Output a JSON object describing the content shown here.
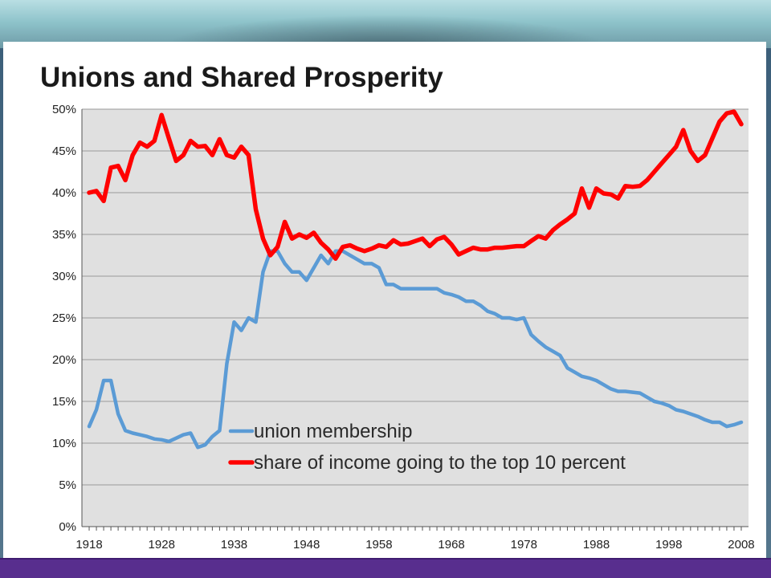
{
  "chart_data": {
    "type": "line",
    "title": "Unions and Shared Prosperity",
    "xlabel": "",
    "ylabel": "",
    "xlim": [
      1917,
      2009
    ],
    "ylim": [
      0,
      50
    ],
    "x_ticks": [
      1918,
      1928,
      1938,
      1948,
      1958,
      1968,
      1978,
      1988,
      1998,
      2008
    ],
    "x_tick_labels": [
      "1918",
      "1928",
      "1938",
      "1948",
      "1958",
      "1968",
      "1978",
      "1988",
      "1998",
      "2008"
    ],
    "y_ticks": [
      0,
      5,
      10,
      15,
      20,
      25,
      30,
      35,
      40,
      45,
      50
    ],
    "y_tick_labels": [
      "0%",
      "5%",
      "10%",
      "15%",
      "20%",
      "25%",
      "30%",
      "35%",
      "40%",
      "45%",
      "50%"
    ],
    "grid": "horizontal",
    "background": "#e0e0e0",
    "legend_position": "bottom-center, inside plot",
    "series": [
      {
        "name": "union membership",
        "color": "#5b9bd5",
        "x": [
          1918,
          1919,
          1920,
          1921,
          1922,
          1923,
          1924,
          1925,
          1926,
          1927,
          1928,
          1929,
          1930,
          1931,
          1932,
          1933,
          1934,
          1935,
          1936,
          1937,
          1938,
          1939,
          1940,
          1941,
          1942,
          1943,
          1944,
          1945,
          1946,
          1947,
          1948,
          1949,
          1950,
          1951,
          1952,
          1953,
          1954,
          1955,
          1956,
          1957,
          1958,
          1959,
          1960,
          1961,
          1962,
          1963,
          1964,
          1965,
          1966,
          1967,
          1968,
          1969,
          1970,
          1971,
          1972,
          1973,
          1974,
          1975,
          1976,
          1977,
          1978,
          1979,
          1980,
          1981,
          1982,
          1983,
          1984,
          1985,
          1986,
          1987,
          1988,
          1989,
          1990,
          1991,
          1992,
          1993,
          1994,
          1995,
          1996,
          1997,
          1998,
          1999,
          2000,
          2001,
          2002,
          2003,
          2004,
          2005,
          2006,
          2007,
          2008
        ],
        "values": [
          12.0,
          14.0,
          17.5,
          17.5,
          13.5,
          11.5,
          11.2,
          11.0,
          10.8,
          10.5,
          10.4,
          10.2,
          10.6,
          11.0,
          11.2,
          9.5,
          9.8,
          10.8,
          11.5,
          19.5,
          24.5,
          23.5,
          25.0,
          24.5,
          30.5,
          33.0,
          33.0,
          31.5,
          30.5,
          30.5,
          29.5,
          31.0,
          32.5,
          31.5,
          33.0,
          33.0,
          32.5,
          32.0,
          31.5,
          31.5,
          31.0,
          29.0,
          29.0,
          28.5,
          28.5,
          28.5,
          28.5,
          28.5,
          28.5,
          28.0,
          27.8,
          27.5,
          27.0,
          27.0,
          26.5,
          25.8,
          25.5,
          25.0,
          25.0,
          24.8,
          25.0,
          23.0,
          22.2,
          21.5,
          21.0,
          20.5,
          19.0,
          18.5,
          18.0,
          17.8,
          17.5,
          17.0,
          16.5,
          16.2,
          16.2,
          16.1,
          16.0,
          15.5,
          15.0,
          14.8,
          14.5,
          14.0,
          13.8,
          13.5,
          13.2,
          12.8,
          12.5,
          12.5,
          12.0,
          12.2,
          12.5
        ]
      },
      {
        "name": "share of income going to the top 10 percent",
        "color": "#ff0000",
        "x": [
          1918,
          1919,
          1920,
          1921,
          1922,
          1923,
          1924,
          1925,
          1926,
          1927,
          1928,
          1929,
          1930,
          1931,
          1932,
          1933,
          1934,
          1935,
          1936,
          1937,
          1938,
          1939,
          1940,
          1941,
          1942,
          1943,
          1944,
          1945,
          1946,
          1947,
          1948,
          1949,
          1950,
          1951,
          1952,
          1953,
          1954,
          1955,
          1956,
          1957,
          1958,
          1959,
          1960,
          1961,
          1962,
          1963,
          1964,
          1965,
          1966,
          1967,
          1968,
          1969,
          1970,
          1971,
          1972,
          1973,
          1974,
          1975,
          1976,
          1977,
          1978,
          1979,
          1980,
          1981,
          1982,
          1983,
          1984,
          1985,
          1986,
          1987,
          1988,
          1989,
          1990,
          1991,
          1992,
          1993,
          1994,
          1995,
          1996,
          1997,
          1998,
          1999,
          2000,
          2001,
          2002,
          2003,
          2004,
          2005,
          2006,
          2007,
          2008
        ],
        "values": [
          40.0,
          40.2,
          39.0,
          43.0,
          43.2,
          41.5,
          44.5,
          46.0,
          45.5,
          46.2,
          49.3,
          46.5,
          43.8,
          44.5,
          46.2,
          45.5,
          45.6,
          44.5,
          46.4,
          44.5,
          44.2,
          45.5,
          44.5,
          38.0,
          34.5,
          32.5,
          33.5,
          36.5,
          34.5,
          35.0,
          34.6,
          35.2,
          34.0,
          33.2,
          32.1,
          33.5,
          33.7,
          33.3,
          33.0,
          33.3,
          33.7,
          33.5,
          34.3,
          33.8,
          33.9,
          34.2,
          34.5,
          33.6,
          34.4,
          34.7,
          33.8,
          32.6,
          33.0,
          33.4,
          33.2,
          33.2,
          33.4,
          33.4,
          33.5,
          33.6,
          33.6,
          34.2,
          34.8,
          34.5,
          35.5,
          36.2,
          36.8,
          37.5,
          40.5,
          38.2,
          40.5,
          39.9,
          39.8,
          39.3,
          40.8,
          40.7,
          40.8,
          41.5,
          42.5,
          43.5,
          44.5,
          45.5,
          47.5,
          45.0,
          43.8,
          44.5,
          46.5,
          48.5,
          49.5,
          49.7,
          48.2
        ]
      }
    ]
  }
}
